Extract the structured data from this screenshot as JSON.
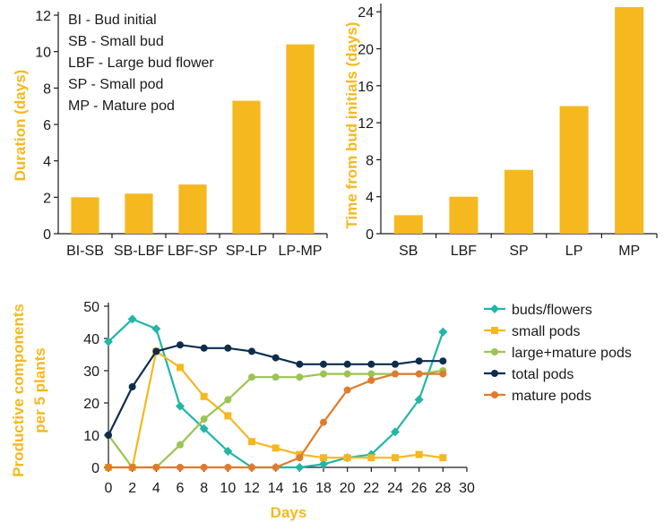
{
  "chart_data": [
    {
      "type": "bar",
      "ylabel": "Duration (days)",
      "categories": [
        "BI-SB",
        "SB-LBF",
        "LBF-SP",
        "SP-LP",
        "LP-MP"
      ],
      "values": [
        2.0,
        2.2,
        2.7,
        7.3,
        10.4
      ],
      "ylim": [
        0,
        12
      ],
      "yticks": [
        "0",
        "2",
        "4",
        "6",
        "8",
        "10",
        "12"
      ],
      "bar_color": "#f5b81e",
      "annotations": [
        "BI - Bud initial",
        "SB - Small bud",
        "LBF - Large bud flower",
        "SP - Small pod",
        "MP - Mature pod"
      ],
      "grid": false
    },
    {
      "type": "bar",
      "ylabel": "Time from bud initials (days)",
      "categories": [
        "SB",
        "LBF",
        "SP",
        "LP",
        "MP"
      ],
      "values": [
        2.0,
        4.0,
        6.9,
        13.8,
        24.5
      ],
      "ylim": [
        0,
        24.5
      ],
      "yticks": [
        "0",
        "4",
        "8",
        "12",
        "16",
        "20",
        "24"
      ],
      "bar_color": "#f5b81e",
      "grid": false
    },
    {
      "type": "line",
      "ylabel_lines": [
        "Productive components",
        "per 5 plants"
      ],
      "xlabel": "Days",
      "x": [
        0,
        2,
        4,
        6,
        8,
        10,
        12,
        14,
        16,
        18,
        20,
        22,
        24,
        26,
        28
      ],
      "xlim": [
        0,
        30
      ],
      "xticks": [
        "0",
        "2",
        "4",
        "6",
        "8",
        "10",
        "12",
        "14",
        "16",
        "18",
        "20",
        "22",
        "24",
        "26",
        "28",
        "30"
      ],
      "ylim": [
        0,
        50
      ],
      "yticks": [
        "0",
        "10",
        "20",
        "30",
        "40",
        "50"
      ],
      "legend_position": "right",
      "grid": false,
      "series": [
        {
          "name": "buds/flowers",
          "color": "#22b5a8",
          "marker": "diamond",
          "values": [
            39,
            46,
            43,
            19,
            12,
            5,
            0,
            0,
            0,
            1,
            3,
            4,
            11,
            21,
            42
          ]
        },
        {
          "name": "small pods",
          "color": "#f5b81e",
          "marker": "square",
          "values": [
            0,
            0,
            36,
            31,
            22,
            16,
            8,
            6,
            4,
            3,
            3,
            3,
            3,
            4,
            3
          ]
        },
        {
          "name": "large+mature pods",
          "color": "#9bc453",
          "marker": "circle",
          "values": [
            10,
            0,
            0,
            7,
            15,
            21,
            28,
            28,
            28,
            29,
            29,
            29,
            29,
            29,
            30
          ]
        },
        {
          "name": "total pods",
          "color": "#0e2d4d",
          "marker": "circle",
          "values": [
            10,
            25,
            36,
            38,
            37,
            37,
            36,
            34,
            32,
            32,
            32,
            32,
            32,
            33,
            33
          ]
        },
        {
          "name": "mature pods",
          "color": "#e07b2e",
          "marker": "circle",
          "values": [
            0,
            0,
            0,
            0,
            0,
            0,
            0,
            0,
            3,
            14,
            24,
            27,
            29,
            29,
            29
          ]
        }
      ]
    }
  ]
}
